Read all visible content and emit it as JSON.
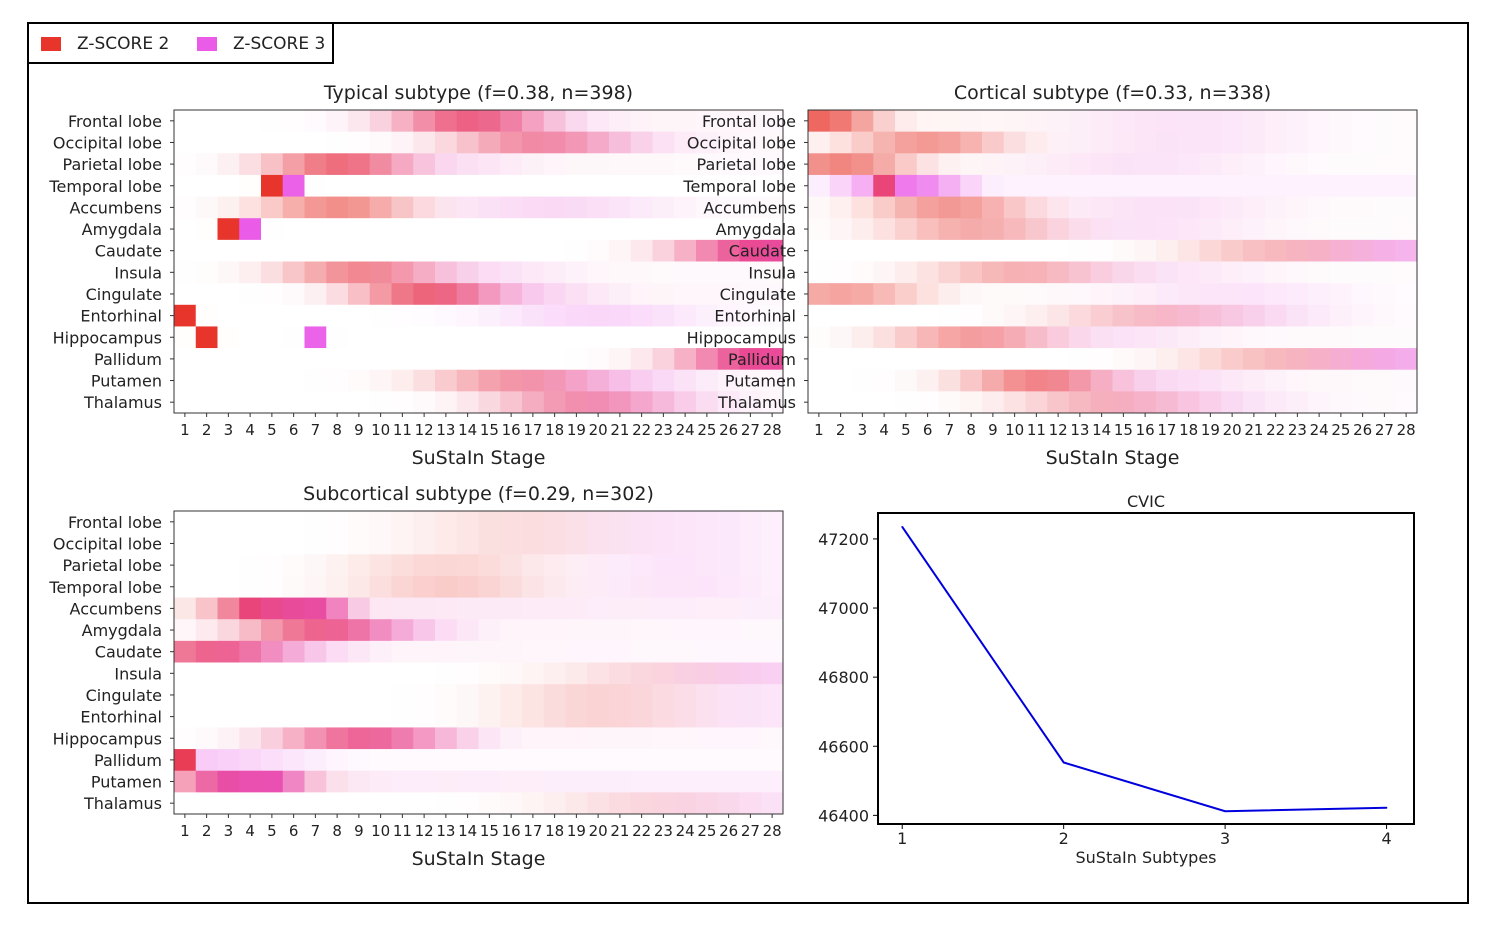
{
  "legend": {
    "items": [
      {
        "label": "Z-SCORE 2",
        "color": "#e8352b"
      },
      {
        "label": "Z-SCORE 3",
        "color": "#ea5be8"
      }
    ]
  },
  "chart_data": [
    {
      "type": "heatmap",
      "title": "Typical subtype (f=0.38, n=398)",
      "xlabel": "SuStaIn Stage",
      "ylabel": "",
      "x": [
        1,
        2,
        3,
        4,
        5,
        6,
        7,
        8,
        9,
        10,
        11,
        12,
        13,
        14,
        15,
        16,
        17,
        18,
        19,
        20,
        21,
        22,
        23,
        24,
        25,
        26,
        27,
        28
      ],
      "rows": [
        "Frontal lobe",
        "Occipital lobe",
        "Parietal lobe",
        "Temporal lobe",
        "Accumbens",
        "Amygdala",
        "Caudate",
        "Insula",
        "Cingulate",
        "Entorhinal",
        "Hippocampus",
        "Pallidum",
        "Putamen",
        "Thalamus"
      ],
      "z2_stage": [
        14,
        17,
        8,
        5,
        8,
        3,
        27,
        9,
        12,
        1,
        2,
        27,
        16,
        19
      ],
      "z3_stage": [
        15,
        19,
        11,
        6,
        18,
        4,
        28,
        13,
        15,
        20,
        7,
        28,
        20,
        21
      ],
      "z2_certainty": [
        0.55,
        0.4,
        0.6,
        1.0,
        0.55,
        1.0,
        0.45,
        0.5,
        0.6,
        1.0,
        1.0,
        0.45,
        0.4,
        0.35
      ],
      "z3_certainty": [
        0.3,
        0.25,
        0.2,
        0.95,
        0.2,
        1.0,
        0.6,
        0.2,
        0.3,
        0.25,
        0.95,
        0.6,
        0.3,
        0.3
      ]
    },
    {
      "type": "heatmap",
      "title": "Cortical subtype (f=0.33, n=338)",
      "xlabel": "SuStaIn Stage",
      "ylabel": "",
      "x": [
        1,
        2,
        3,
        4,
        5,
        6,
        7,
        8,
        9,
        10,
        11,
        12,
        13,
        14,
        15,
        16,
        17,
        18,
        19,
        20,
        21,
        22,
        23,
        24,
        25,
        26,
        27,
        28
      ],
      "rows": [
        "Frontal lobe",
        "Occipital lobe",
        "Parietal lobe",
        "Temporal lobe",
        "Accumbens",
        "Amygdala",
        "Caudate",
        "Insula",
        "Cingulate",
        "Entorhinal",
        "Hippocampus",
        "Pallidum",
        "Putamen",
        "Thalamus"
      ],
      "z2_stage": [
        1,
        6,
        2,
        4,
        7,
        8,
        22,
        10,
        2,
        16,
        8,
        22,
        11,
        14
      ],
      "z3_stage": [
        18,
        18,
        16,
        5,
        17,
        16,
        28,
        16,
        20,
        20,
        14,
        28,
        16,
        18
      ],
      "z2_certainty": [
        0.75,
        0.5,
        0.6,
        1.0,
        0.5,
        0.4,
        0.3,
        0.35,
        0.45,
        0.25,
        0.45,
        0.3,
        0.55,
        0.3
      ],
      "z3_certainty": [
        0.15,
        0.15,
        0.15,
        0.8,
        0.15,
        0.15,
        0.4,
        0.15,
        0.15,
        0.2,
        0.15,
        0.45,
        0.2,
        0.2
      ]
    },
    {
      "type": "heatmap",
      "title": "Subcortical subtype (f=0.29, n=302)",
      "xlabel": "SuStaIn Stage",
      "ylabel": "",
      "x": [
        1,
        2,
        3,
        4,
        5,
        6,
        7,
        8,
        9,
        10,
        11,
        12,
        13,
        14,
        15,
        16,
        17,
        18,
        19,
        20,
        21,
        22,
        23,
        24,
        25,
        26,
        27,
        28
      ],
      "rows": [
        "Frontal lobe",
        "Occipital lobe",
        "Parietal lobe",
        "Temporal lobe",
        "Accumbens",
        "Amygdala",
        "Caudate",
        "Insula",
        "Cingulate",
        "Entorhinal",
        "Hippocampus",
        "Pallidum",
        "Putamen",
        "Thalamus"
      ],
      "z2_stage": [
        16,
        16,
        13,
        13,
        5,
        7,
        2,
        22,
        20,
        20,
        9,
        1,
        3,
        22
      ],
      "z3_stage": [
        24,
        24,
        24,
        24,
        6,
        9,
        4,
        28,
        28,
        28,
        10,
        2,
        4,
        27
      ],
      "z2_certainty": [
        0.15,
        0.15,
        0.2,
        0.25,
        0.7,
        0.5,
        0.5,
        0.15,
        0.2,
        0.2,
        0.45,
        1.0,
        0.4,
        0.15
      ],
      "z3_certainty": [
        0.15,
        0.15,
        0.15,
        0.15,
        0.9,
        0.4,
        0.4,
        0.25,
        0.15,
        0.15,
        0.4,
        0.3,
        0.9,
        0.15
      ]
    },
    {
      "type": "line",
      "title": "CVIC",
      "xlabel": "SuStaIn Subtypes",
      "ylabel": "",
      "x": [
        1,
        2,
        3,
        4
      ],
      "series": [
        {
          "name": "CVIC",
          "color": "#0000dd",
          "values": [
            47235,
            46553,
            46412,
            46422
          ]
        }
      ],
      "xlim": [
        0.85,
        4.17
      ],
      "ylim": [
        46375,
        47275
      ],
      "yticks": [
        46400,
        46600,
        46800,
        47000,
        47200
      ],
      "xticks": [
        1,
        2,
        3,
        4
      ]
    }
  ]
}
